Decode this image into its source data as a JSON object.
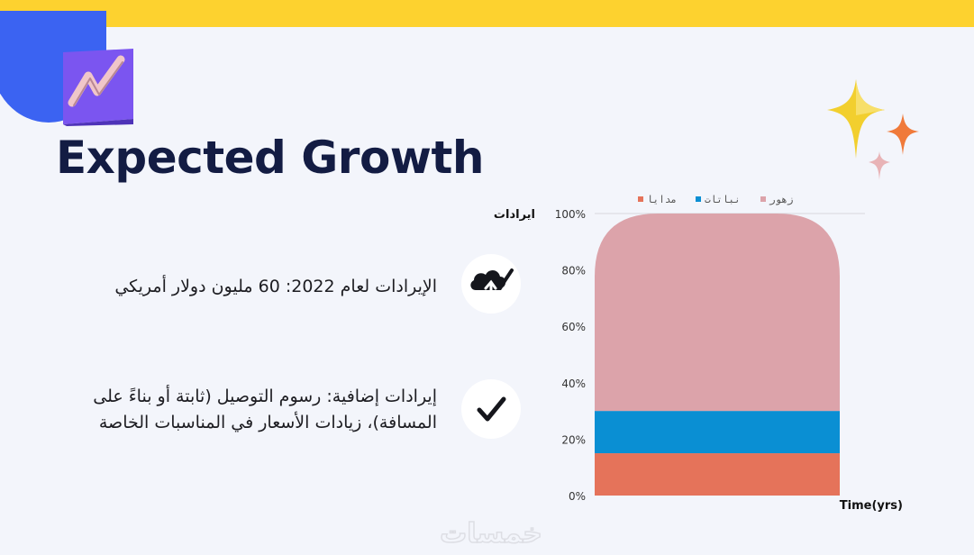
{
  "slide": {
    "title": "Expected Growth",
    "icons": [
      "rising-chart-logo-icon",
      "sparkles-icon"
    ],
    "items": [
      {
        "text": "الإيرادات لعام 2022: 60 مليون دولار أمريكي",
        "icon": "cloud-check-icon"
      },
      {
        "text": "إيرادات إضافية: رسوم التوصيل (ثابتة أو بناءً على المسافة)، زيادات الأسعار في المناسبات الخاصة",
        "icon": "checkmark-icon"
      }
    ],
    "watermark": "خمسات"
  },
  "colors": {
    "accent_bar": "#fdd22f",
    "blob": "#3b63f2",
    "title": "#131c43",
    "series": [
      "#e5735a",
      "#0a8fd3",
      "#dca3aa"
    ]
  },
  "chart_data": {
    "type": "bar",
    "stacked": "percent",
    "categories": [
      ""
    ],
    "series": [
      {
        "name": "مدايا",
        "values": [
          15
        ]
      },
      {
        "name": "نباتات",
        "values": [
          15
        ]
      },
      {
        "name": "زهور",
        "values": [
          70
        ]
      }
    ],
    "ylabel": "ايرادات",
    "xlabel": "Time(yrs)",
    "yticks": [
      "0%",
      "20%",
      "40%",
      "60%",
      "80%",
      "100%"
    ],
    "ylim": [
      0,
      100
    ],
    "legend_position": "top",
    "grid": false
  }
}
